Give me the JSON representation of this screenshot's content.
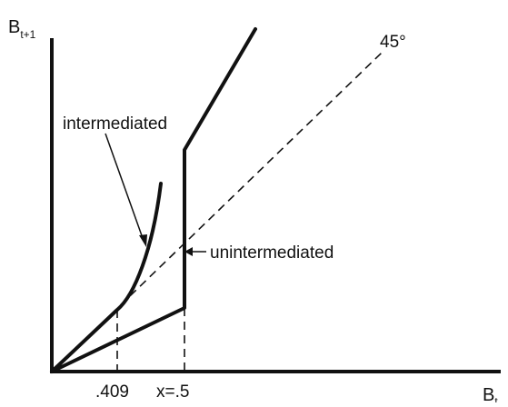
{
  "axes": {
    "y_label": "B",
    "y_subscript": "t+1",
    "x_label": "B",
    "x_subscript": "t"
  },
  "diagonal_label": "45°",
  "curve_labels": {
    "intermediated": "intermediated",
    "unintermediated": "unintermediated"
  },
  "x_ticks": {
    "first": ".409",
    "second": "x=.5"
  }
}
